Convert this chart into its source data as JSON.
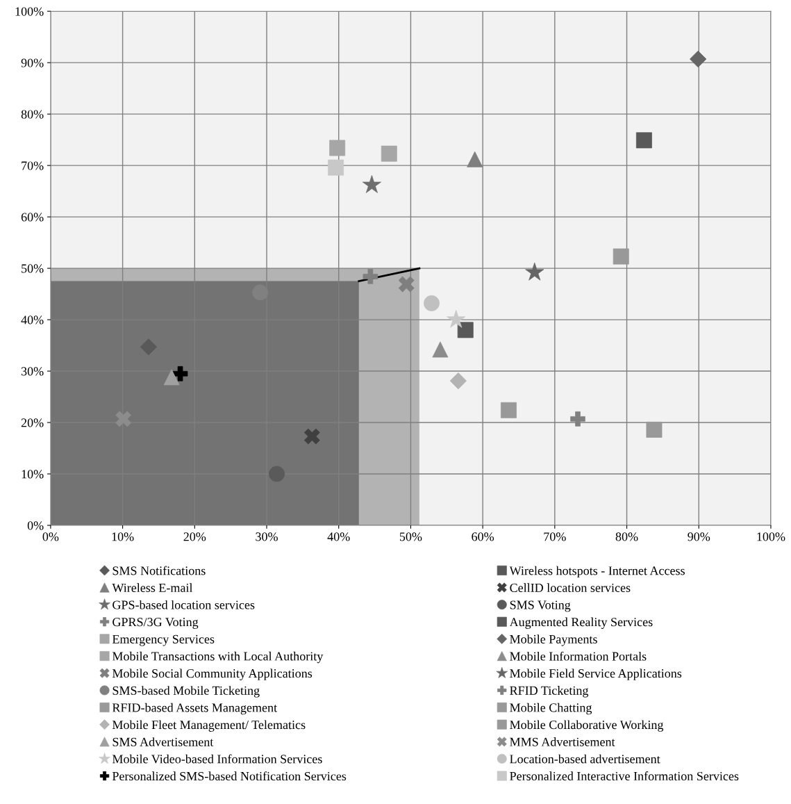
{
  "chart_data": {
    "type": "scatter",
    "xlim": [
      0,
      100
    ],
    "ylim": [
      0,
      100
    ],
    "xticks": [
      {
        "value": 0,
        "label": "0%"
      },
      {
        "value": 10,
        "label": "10%"
      },
      {
        "value": 20,
        "label": "20%"
      },
      {
        "value": 30,
        "label": "30%"
      },
      {
        "value": 40,
        "label": "40%"
      },
      {
        "value": 50,
        "label": "50%"
      },
      {
        "value": 60,
        "label": "60%"
      },
      {
        "value": 70,
        "label": "70%"
      },
      {
        "value": 80,
        "label": "80%"
      },
      {
        "value": 90,
        "label": "90%"
      },
      {
        "value": 100,
        "label": "100%"
      }
    ],
    "yticks": [
      {
        "value": 0,
        "label": "0%"
      },
      {
        "value": 10,
        "label": "10%"
      },
      {
        "value": 20,
        "label": "20%"
      },
      {
        "value": 30,
        "label": "30%"
      },
      {
        "value": 40,
        "label": "40%"
      },
      {
        "value": 50,
        "label": "50%"
      },
      {
        "value": 60,
        "label": "60%"
      },
      {
        "value": 70,
        "label": "70%"
      },
      {
        "value": 80,
        "label": "80%"
      },
      {
        "value": 90,
        "label": "90%"
      },
      {
        "value": 100,
        "label": "100%"
      }
    ],
    "grid": true,
    "legend": "bottom",
    "series": [
      {
        "type": "area",
        "color": "#b3b3b3",
        "x": [
          0,
          51.2
        ],
        "values": [
          50,
          50
        ]
      },
      {
        "type": "area",
        "color": "#737373",
        "x": [
          0,
          42.8
        ],
        "values": [
          47.5,
          47.5
        ]
      },
      {
        "type": "line",
        "color": "#000000",
        "line_style": "solid",
        "x": [
          42.8,
          51.2
        ],
        "values": [
          47.5,
          50
        ]
      },
      {
        "name": "SMS Notifications",
        "marker": "diamond",
        "color": "#595959",
        "x": [
          13.6
        ],
        "values": [
          34.7
        ]
      },
      {
        "name": "Wireless E-mail",
        "marker": "triangle",
        "color": "#7f7f7f",
        "x": [
          58.9
        ],
        "values": [
          71.2
        ]
      },
      {
        "name": "GPS-based location services",
        "marker": "star",
        "color": "#6e6e6e",
        "x": [
          44.6
        ],
        "values": [
          66.2
        ]
      },
      {
        "name": "GPRS/3G Voting",
        "marker": "cross",
        "color": "#7f7f7f",
        "x": [
          44.4
        ],
        "values": [
          48.4
        ]
      },
      {
        "name": "Emergency Services",
        "marker": "square",
        "color": "#a6a6a6",
        "x": [
          39.8
        ],
        "values": [
          73.4
        ]
      },
      {
        "name": "Mobile Transactions with Local Authority",
        "marker": "square",
        "color": "#a6a6a6",
        "x": [
          47.0
        ],
        "values": [
          72.3
        ]
      },
      {
        "name": "Mobile Social Community Applications",
        "color": "#7f7f7f",
        "x": [
          49.4
        ],
        "values": [
          46.9
        ]
      },
      {
        "name": "SMS-based Mobile Ticketing",
        "marker": "circle",
        "color": "#808080",
        "x": [
          29.1
        ],
        "values": [
          45.3
        ]
      },
      {
        "name": "RFID-based Assets Management",
        "marker": "square",
        "color": "#999999",
        "x": [
          83.8
        ],
        "values": [
          18.6
        ]
      },
      {
        "name": "Mobile Fleet Management/ Telematics",
        "marker": "diamond",
        "color": "#b3b3b3",
        "x": [
          56.6
        ],
        "values": [
          28.1
        ]
      },
      {
        "name": "SMS Advertisement",
        "marker": "triangle",
        "color": "#a0a0a0",
        "x": [
          16.8
        ],
        "values": [
          28.8
        ]
      },
      {
        "name": "Mobile Video-based Information Services",
        "marker": "star",
        "color": "#c8c8c8",
        "x": [
          56.3
        ],
        "values": [
          40.0
        ]
      },
      {
        "name": "Personalized SMS-based Notification Services",
        "marker": "cross",
        "color": "#000000",
        "x": [
          18.0
        ],
        "values": [
          29.5
        ]
      },
      {
        "name": "Wireless hotspots - Internet Access",
        "marker": "square",
        "color": "#595959",
        "x": [
          57.6
        ],
        "values": [
          38.0
        ]
      },
      {
        "name": "CellID location services",
        "color": "#404040",
        "x": [
          36.3
        ],
        "values": [
          17.3
        ]
      },
      {
        "name": "SMS Voting",
        "marker": "circle",
        "color": "#5a5a5a",
        "x": [
          31.4
        ],
        "values": [
          10.0
        ]
      },
      {
        "name": "Augmented Reality Services",
        "marker": "square",
        "color": "#595959",
        "x": [
          82.4
        ],
        "values": [
          74.9
        ]
      },
      {
        "name": "Mobile Payments",
        "marker": "diamond",
        "color": "#666666",
        "x": [
          89.9
        ],
        "values": [
          90.7
        ]
      },
      {
        "name": "Mobile Information Portals",
        "marker": "triangle",
        "color": "#8c8c8c",
        "x": [
          54.1
        ],
        "values": [
          34.2
        ]
      },
      {
        "name": "Mobile Field Service Applications",
        "marker": "star",
        "color": "#666666",
        "x": [
          67.2
        ],
        "values": [
          49.2
        ]
      },
      {
        "name": "RFID Ticketing",
        "marker": "cross",
        "color": "#808080",
        "x": [
          73.2
        ],
        "values": [
          20.7
        ]
      },
      {
        "name": "Mobile Chatting",
        "marker": "square",
        "color": "#999999",
        "x": [
          63.6
        ],
        "values": [
          22.4
        ]
      },
      {
        "name": "Mobile Collaborative Working",
        "marker": "square",
        "color": "#999999",
        "x": [
          79.2
        ],
        "values": [
          52.3
        ]
      },
      {
        "name": "MMS Advertisement",
        "color": "#8c8c8c",
        "x": [
          10.1
        ],
        "values": [
          20.7
        ]
      },
      {
        "name": "Location-based advertisement",
        "marker": "circle",
        "color": "#c0c0c0",
        "x": [
          52.9
        ],
        "values": [
          43.2
        ]
      },
      {
        "name": "Personalized Interactive Information Services",
        "marker": "square",
        "color": "#c8c8c8",
        "x": [
          39.6
        ],
        "values": [
          69.6
        ]
      }
    ]
  }
}
